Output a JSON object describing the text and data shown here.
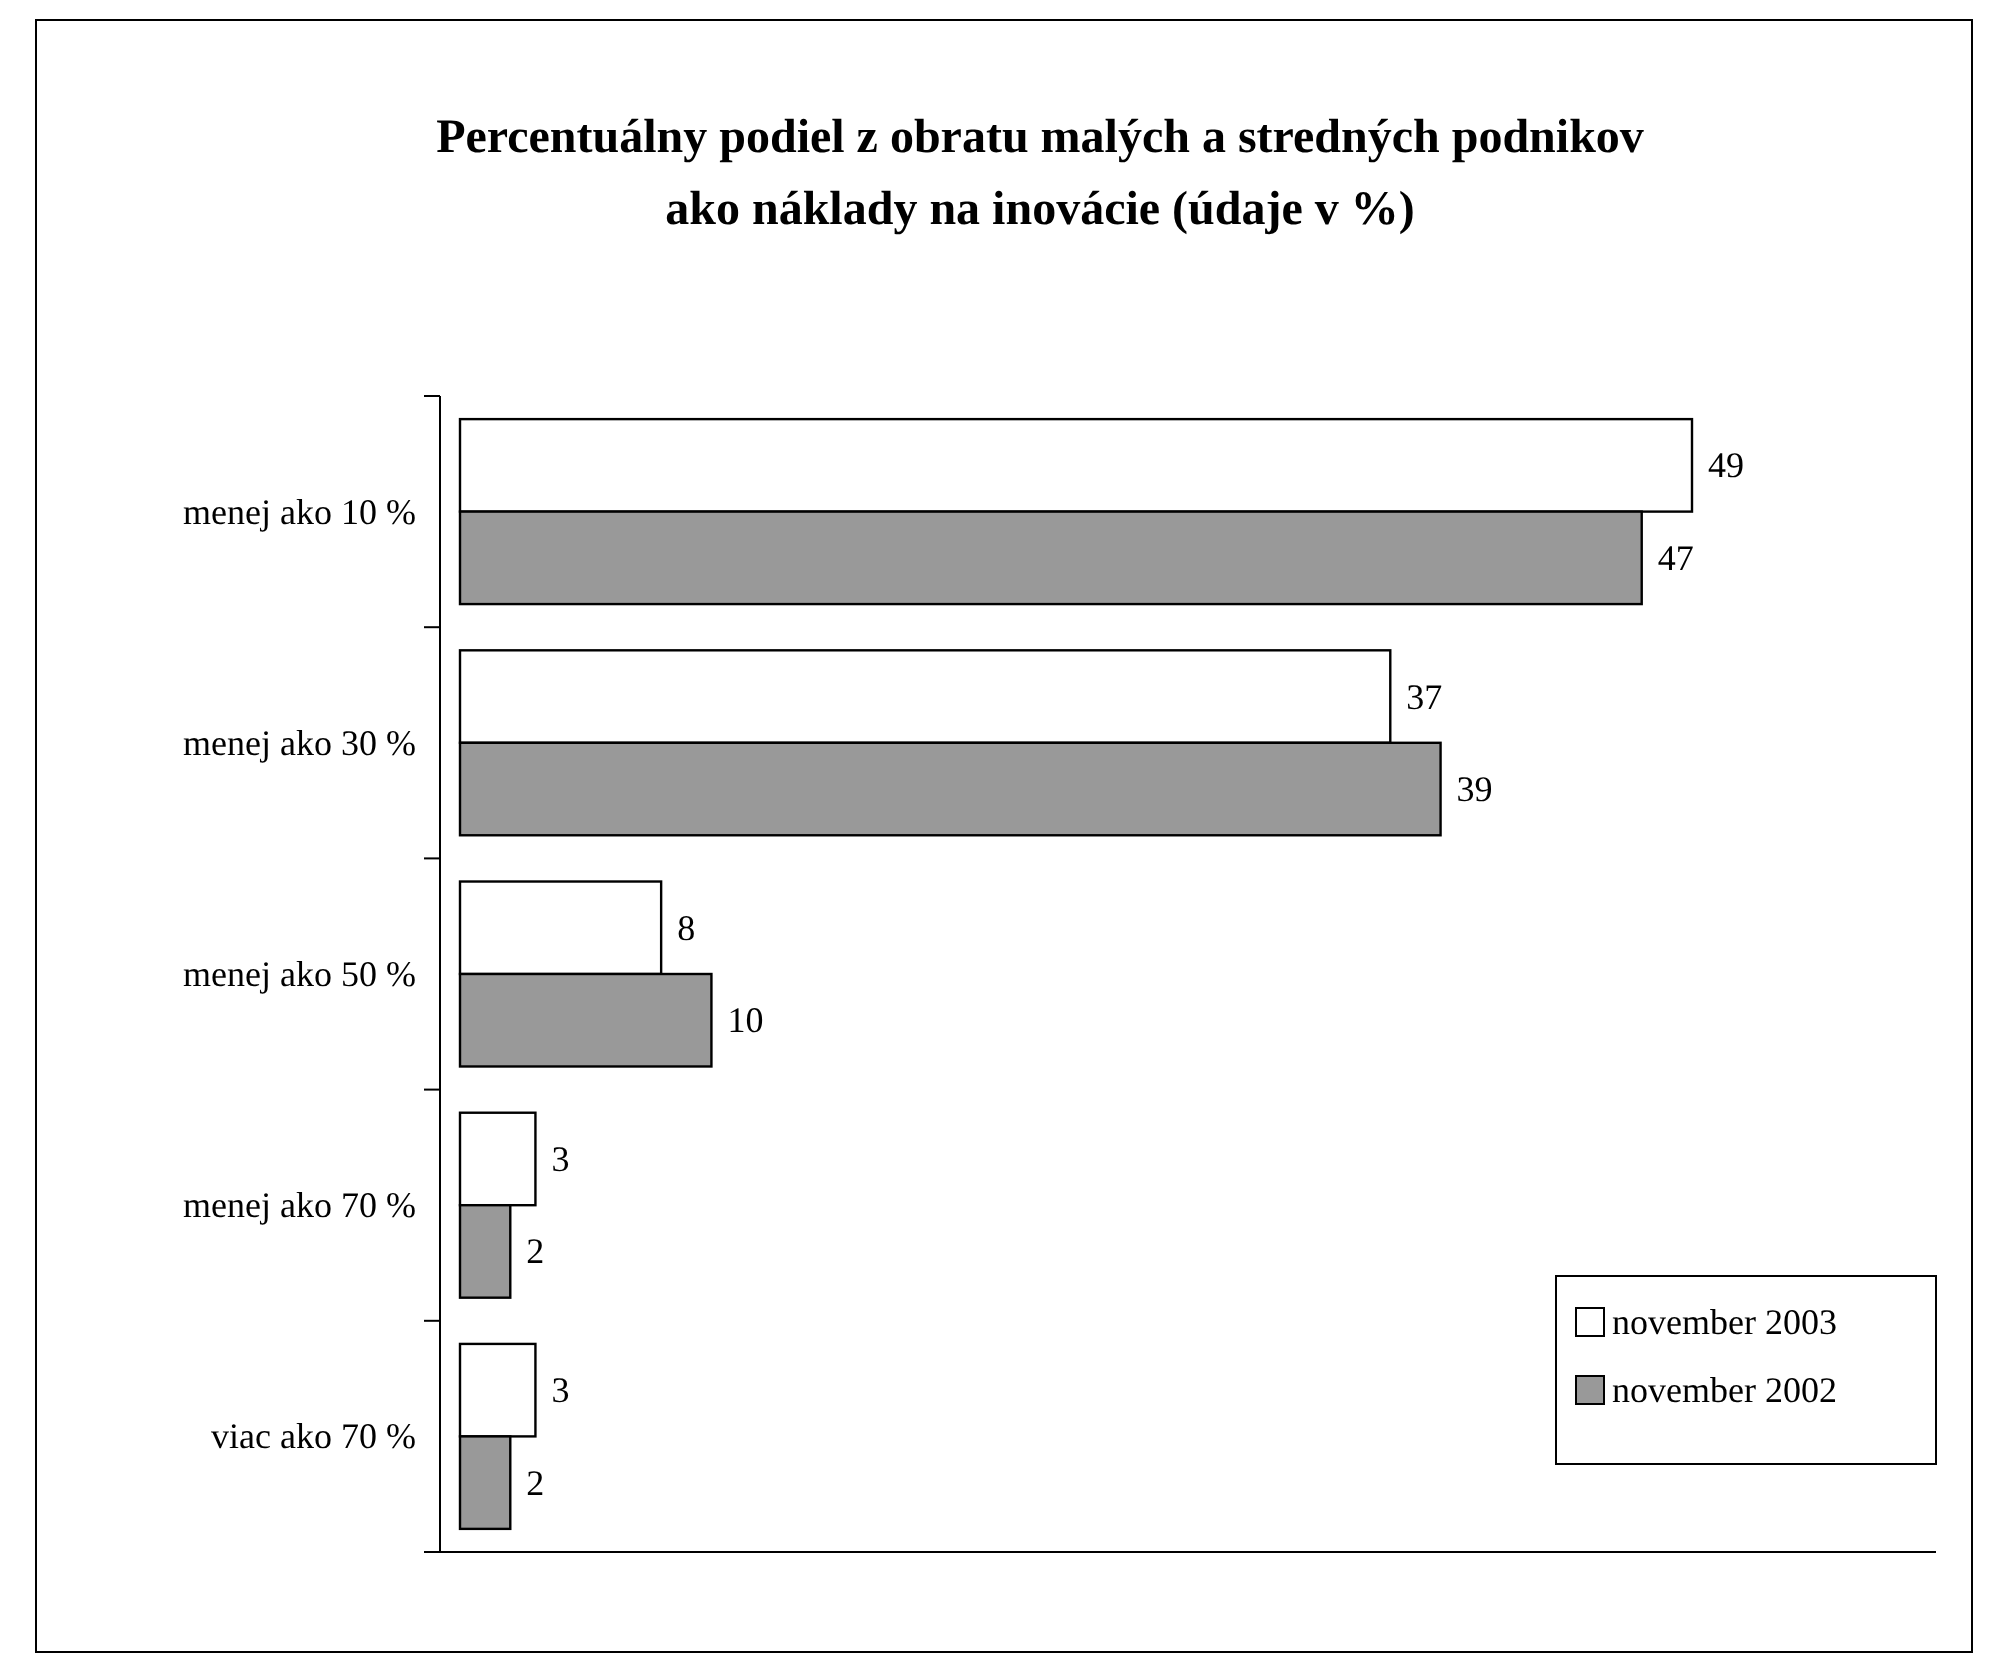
{
  "chart_data": {
    "type": "bar",
    "orientation": "horizontal",
    "title": "Percentuálny podiel z obratu malých a stredných podnikov ako náklady na inovácie (údaje v %)",
    "categories": [
      "menej ako 10 %",
      "menej ako 30 %",
      "menej ako 50 %",
      "menej ako 70 %",
      "viac ako 70 %"
    ],
    "series": [
      {
        "name": "november 2003",
        "color": "#ffffff",
        "values": [
          49,
          37,
          8,
          3,
          3
        ]
      },
      {
        "name": "november 2002",
        "color": "#999999",
        "values": [
          47,
          39,
          10,
          2,
          2
        ]
      }
    ],
    "data_labels": true,
    "legend": "bottom right"
  }
}
